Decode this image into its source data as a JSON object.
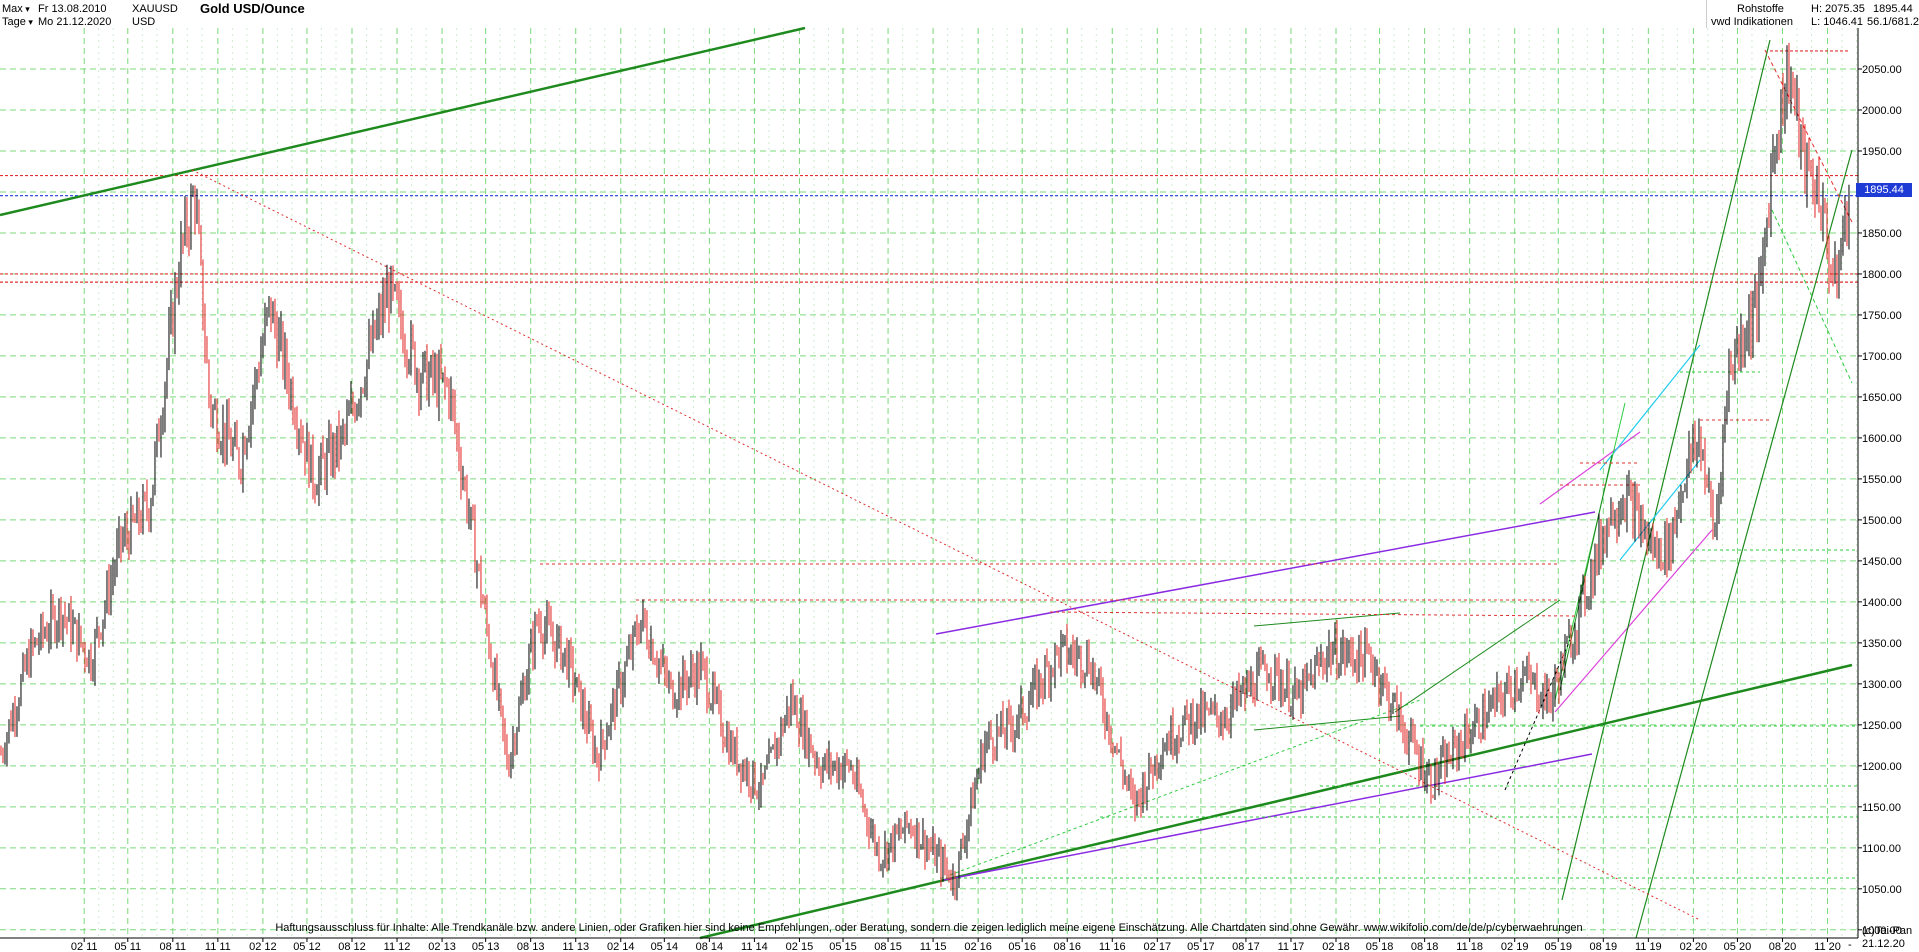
{
  "header": {
    "period_label": "Max",
    "interval_label": "Tage",
    "date_from": "Fr 13.08.2010",
    "date_to": "Mo 21.12.2020",
    "symbol": "XAUUSD",
    "currency": "USD",
    "title": "Gold USD/Ounce"
  },
  "right_panel": {
    "category": "Rohstoffe",
    "source": "vwd Indikationen",
    "high": "H: 2075.35",
    "low": "L: 1046.41",
    "last": "1895.44",
    "ratio": "56.1/681.2"
  },
  "price_tag": "1895.44",
  "footer": {
    "disclaimer": "Haftungsausschluss für Inhalte: Alle Trendkanäle bzw. andere Linien, oder Grafiken hier sind keine Empfehlungen, oder Beratung, sondern die zeigen lediglich meine eigene Einschätzung. Alle Chartdaten sind ohne Gewähr.  www.wikifolio.com/de/de/p/cyberwaehrungen",
    "copyright": "(c)Tai-Pan",
    "end_date": "21.12.20",
    "end_marker": "-"
  },
  "chart_data": {
    "type": "line",
    "ylim": [
      990,
      2100
    ],
    "y_ticks": [
      1000,
      1050,
      1100,
      1150,
      1200,
      1250,
      1300,
      1350,
      1400,
      1450,
      1500,
      1550,
      1600,
      1650,
      1700,
      1750,
      1800,
      1850,
      1900,
      1950,
      2000,
      2050
    ],
    "y_tick_labels": [
      "1000.00",
      "1050.00",
      "1100.00",
      "1150.00",
      "1200.00",
      "1250.00",
      "1300.00",
      "1350.00",
      "1400.00",
      "1450.00",
      "1500.00",
      "1550.00",
      "1600.00",
      "1650.00",
      "1700.00",
      "1750.00",
      "1800.00",
      "1850.00",
      "1900.00",
      "1950.00",
      "2000.00",
      "2050.00"
    ],
    "x_tick_labels": [
      "02 11",
      "05 11",
      "08 11",
      "11 11",
      "02 12",
      "05 12",
      "08 12",
      "11 12",
      "02 13",
      "05 13",
      "08 13",
      "11 13",
      "02 14",
      "05 14",
      "08 14",
      "11 14",
      "02 15",
      "05 15",
      "08 15",
      "11 15",
      "02 16",
      "05 16",
      "08 16",
      "11 16",
      "02 17",
      "05 17",
      "08 17",
      "11 17",
      "02 18",
      "05 18",
      "08 18",
      "11 18",
      "02 19",
      "05 19",
      "08 19",
      "11 19",
      "02 20",
      "05 20",
      "08 20",
      "11 20"
    ],
    "x_range": [
      "2010-08-13",
      "2020-12-21"
    ],
    "series": [
      {
        "x": [
          "2010-08",
          "2010-10",
          "2010-12",
          "2011-02",
          "2011-04",
          "2011-06",
          "2011-08",
          "2011-09",
          "2011-10",
          "2011-12",
          "2012-02",
          "2012-05",
          "2012-07",
          "2012-10",
          "2012-12",
          "2013-02",
          "2013-04",
          "2013-06",
          "2013-08",
          "2013-10",
          "2013-12",
          "2014-03",
          "2014-05",
          "2014-07",
          "2014-09",
          "2014-11",
          "2015-01",
          "2015-03",
          "2015-05",
          "2015-07",
          "2015-09",
          "2015-12",
          "2016-02",
          "2016-04",
          "2016-07",
          "2016-09",
          "2016-12",
          "2017-02",
          "2017-04",
          "2017-06",
          "2017-09",
          "2017-11",
          "2018-01",
          "2018-04",
          "2018-06",
          "2018-08",
          "2018-10",
          "2018-12",
          "2019-02",
          "2019-04",
          "2019-06",
          "2019-08",
          "2019-09",
          "2019-11",
          "2019-12",
          "2020-01",
          "2020-02",
          "2020-03",
          "2020-04",
          "2020-05",
          "2020-06",
          "2020-07",
          "2020-08",
          "2020-09",
          "2020-10",
          "2020-11",
          "2020-12"
        ],
        "y": [
          1215,
          1340,
          1390,
          1330,
          1470,
          1520,
          1820,
          1900,
          1640,
          1570,
          1760,
          1550,
          1600,
          1780,
          1680,
          1660,
          1440,
          1200,
          1380,
          1330,
          1210,
          1380,
          1290,
          1320,
          1220,
          1170,
          1280,
          1200,
          1200,
          1090,
          1130,
          1060,
          1230,
          1250,
          1340,
          1330,
          1150,
          1230,
          1260,
          1260,
          1320,
          1280,
          1340,
          1330,
          1250,
          1180,
          1230,
          1270,
          1310,
          1280,
          1390,
          1510,
          1530,
          1460,
          1470,
          1560,
          1600,
          1480,
          1690,
          1730,
          1770,
          1960,
          2050,
          1930,
          1900,
          1780,
          1895
        ]
      }
    ],
    "horizontal_levels": [
      {
        "value": 1920,
        "color": "#e03030",
        "style": "dashed"
      },
      {
        "value": 1895.44,
        "color": "#1f3bd6",
        "style": "dashed"
      },
      {
        "value": 1800,
        "color": "#e03030",
        "style": "dashed"
      },
      {
        "value": 1790,
        "color": "#e03030",
        "style": "dashed"
      },
      {
        "value": 2072,
        "color": "#e03030",
        "style": "dashed"
      }
    ],
    "high": 2075.35,
    "low": 1046.41,
    "last": 1895.44,
    "grid": true,
    "colors": {
      "up": "#000000",
      "down": "#e02020",
      "grid": "#7bd97b",
      "trend": "#1e8a1e",
      "channel": "#8a2be2",
      "resistance": "#e03030"
    }
  }
}
